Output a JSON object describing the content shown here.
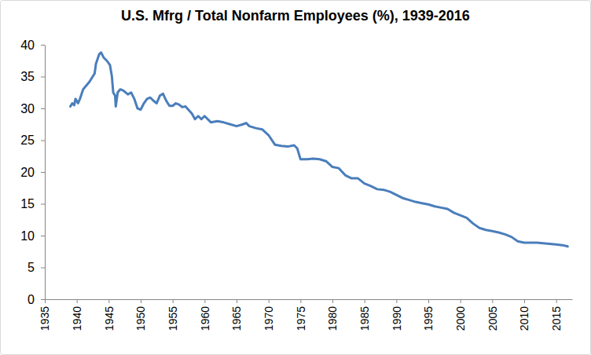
{
  "chart_data": {
    "type": "line",
    "title": "U.S. Mfrg / Total Nonfarm Employees (%), 1939-2016",
    "color": "#4a7ebb",
    "grid": false,
    "xlim": [
      1935,
      2017.5
    ],
    "xticks": [
      1935,
      1940,
      1945,
      1950,
      1955,
      1960,
      1965,
      1970,
      1975,
      1980,
      1985,
      1990,
      1995,
      2000,
      2005,
      2010,
      2015
    ],
    "ylim": [
      0,
      40
    ],
    "yticks": [
      0,
      5,
      10,
      15,
      20,
      25,
      30,
      35,
      40
    ],
    "x": [
      1939.0,
      1939.3,
      1939.6,
      1939.8,
      1940.2,
      1940.5,
      1941.0,
      1942.0,
      1942.8,
      1943.0,
      1943.5,
      1943.8,
      1944.2,
      1944.7,
      1945.2,
      1945.5,
      1945.7,
      1946.0,
      1946.1,
      1946.4,
      1946.8,
      1947.3,
      1948.0,
      1948.5,
      1949.0,
      1949.5,
      1950.0,
      1950.5,
      1951.0,
      1951.5,
      1952.0,
      1952.5,
      1953.0,
      1953.5,
      1954.0,
      1954.5,
      1955.0,
      1955.5,
      1956.0,
      1956.5,
      1957.0,
      1958.0,
      1958.5,
      1959.0,
      1959.5,
      1960.0,
      1961.0,
      1962.0,
      1963.0,
      1964.0,
      1965.0,
      1966.0,
      1966.5,
      1967.0,
      1968.0,
      1969.0,
      1970.0,
      1971.0,
      1972.0,
      1973.0,
      1974.0,
      1974.5,
      1975.0,
      1976.0,
      1977.0,
      1978.0,
      1979.0,
      1980.0,
      1981.0,
      1982.0,
      1983.0,
      1984.0,
      1985.0,
      1986.0,
      1987.0,
      1988.0,
      1989.0,
      1990.0,
      1991.0,
      1992.0,
      1993.0,
      1994.0,
      1995.0,
      1996.0,
      1997.0,
      1998.0,
      1999.0,
      2000.0,
      2001.0,
      2002.0,
      2003.0,
      2004.0,
      2005.0,
      2006.0,
      2007.0,
      2008.0,
      2009.0,
      2010.0,
      2011.0,
      2012.0,
      2013.0,
      2014.0,
      2015.0,
      2016.0,
      2016.8
    ],
    "values": [
      30.3,
      30.8,
      30.5,
      31.5,
      30.8,
      31.5,
      33.0,
      34.2,
      35.5,
      37.0,
      38.5,
      38.8,
      38.0,
      37.5,
      36.8,
      35.0,
      32.5,
      32.0,
      30.3,
      32.5,
      33.0,
      32.8,
      32.2,
      32.5,
      31.5,
      30.0,
      29.8,
      30.8,
      31.5,
      31.7,
      31.2,
      30.8,
      32.0,
      32.3,
      31.2,
      30.4,
      30.4,
      30.8,
      30.6,
      30.2,
      30.3,
      29.2,
      28.3,
      28.8,
      28.3,
      28.8,
      27.8,
      28.0,
      27.8,
      27.5,
      27.2,
      27.5,
      27.7,
      27.2,
      26.9,
      26.7,
      25.8,
      24.3,
      24.1,
      24.0,
      24.2,
      23.7,
      22.0,
      22.0,
      22.1,
      22.0,
      21.7,
      20.8,
      20.6,
      19.5,
      19.0,
      19.0,
      18.2,
      17.8,
      17.3,
      17.2,
      16.9,
      16.4,
      15.9,
      15.6,
      15.3,
      15.1,
      14.9,
      14.6,
      14.4,
      14.2,
      13.6,
      13.2,
      12.8,
      11.9,
      11.2,
      10.9,
      10.7,
      10.5,
      10.2,
      9.8,
      9.1,
      8.9,
      8.9,
      8.9,
      8.8,
      8.7,
      8.6,
      8.5,
      8.3
    ]
  }
}
